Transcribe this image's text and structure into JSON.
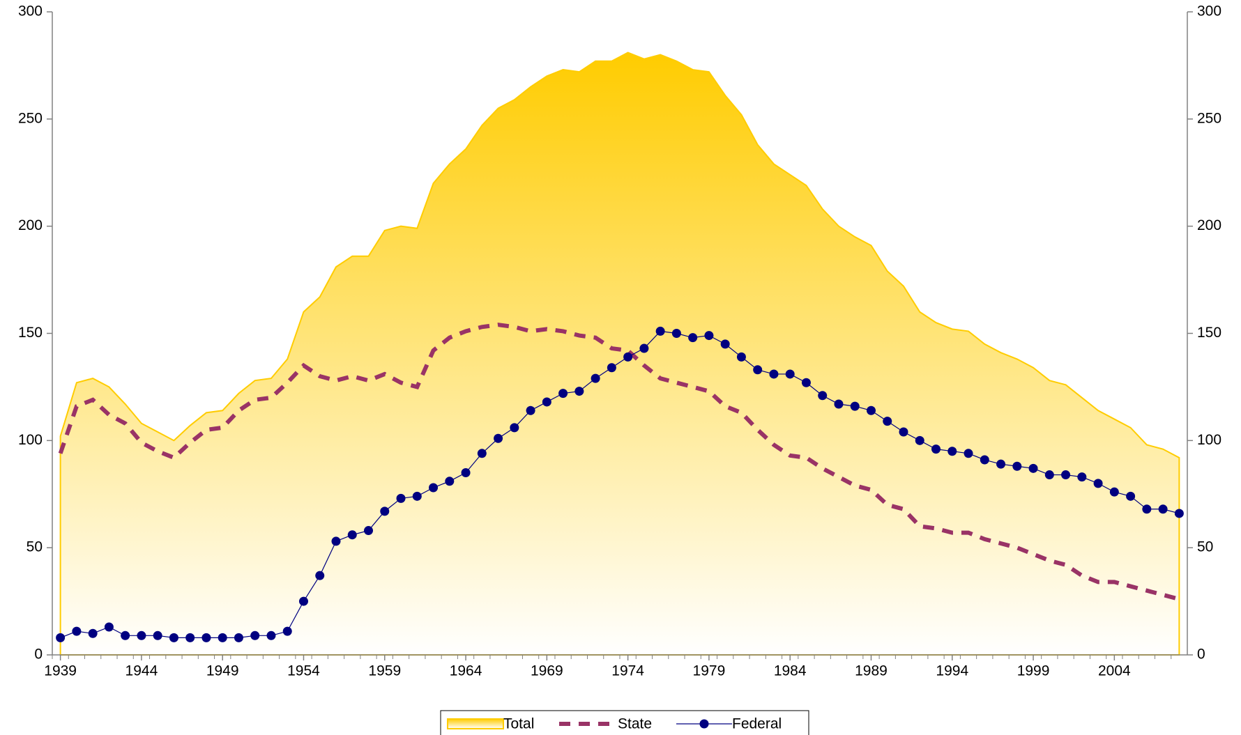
{
  "chart_data": {
    "type": "area-line",
    "x": [
      1939,
      1940,
      1941,
      1942,
      1943,
      1944,
      1945,
      1946,
      1947,
      1948,
      1949,
      1950,
      1951,
      1952,
      1953,
      1954,
      1955,
      1956,
      1957,
      1958,
      1959,
      1960,
      1961,
      1962,
      1963,
      1964,
      1965,
      1966,
      1967,
      1968,
      1969,
      1970,
      1971,
      1972,
      1973,
      1974,
      1975,
      1976,
      1977,
      1978,
      1979,
      1980,
      1981,
      1982,
      1983,
      1984,
      1985,
      1986,
      1987,
      1988,
      1989,
      1990,
      1991,
      1992,
      1993,
      1994,
      1995,
      1996,
      1997,
      1998,
      1999,
      2000,
      2001,
      2002,
      2003,
      2004,
      2005,
      2006,
      2007,
      2008
    ],
    "series": [
      {
        "name": "Total",
        "color": "#ffcc00",
        "style": "area",
        "values": [
          102,
          127,
          129,
          125,
          117,
          108,
          104,
          100,
          107,
          113,
          114,
          122,
          128,
          129,
          138,
          160,
          167,
          181,
          186,
          186,
          198,
          200,
          199,
          220,
          229,
          236,
          247,
          255,
          259,
          265,
          270,
          273,
          272,
          277,
          277,
          281,
          278,
          280,
          277,
          273,
          272,
          261,
          252,
          238,
          229,
          224,
          219,
          208,
          200,
          195,
          191,
          179,
          172,
          160,
          155,
          152,
          151,
          145,
          141,
          138,
          134,
          128,
          126,
          120,
          114,
          110,
          106,
          98,
          96,
          92
        ]
      },
      {
        "name": "State",
        "color": "#993366",
        "style": "dashed",
        "values": [
          94,
          116,
          119,
          112,
          108,
          99,
          95,
          92,
          99,
          105,
          106,
          114,
          119,
          120,
          127,
          135,
          130,
          128,
          130,
          128,
          131,
          127,
          125,
          142,
          148,
          151,
          153,
          154,
          153,
          151,
          152,
          151,
          149,
          148,
          143,
          142,
          135,
          129,
          127,
          125,
          123,
          116,
          113,
          105,
          98,
          93,
          92,
          87,
          83,
          79,
          77,
          70,
          68,
          60,
          59,
          57,
          57,
          54,
          52,
          50,
          47,
          44,
          42,
          37,
          34,
          34,
          32,
          30,
          28,
          26
        ]
      },
      {
        "name": "Federal",
        "color": "#000080",
        "style": "marker-line",
        "values": [
          8,
          11,
          10,
          13,
          9,
          9,
          9,
          8,
          8,
          8,
          8,
          8,
          9,
          9,
          11,
          25,
          37,
          53,
          56,
          58,
          67,
          73,
          74,
          78,
          81,
          85,
          94,
          101,
          106,
          114,
          118,
          122,
          123,
          129,
          134,
          139,
          143,
          151,
          150,
          148,
          149,
          145,
          139,
          133,
          131,
          131,
          127,
          121,
          117,
          116,
          114,
          109,
          104,
          100,
          96,
          95,
          94,
          91,
          89,
          88,
          87,
          84,
          84,
          83,
          80,
          76,
          74,
          68,
          68,
          66
        ]
      }
    ],
    "xlim": [
      1938.5,
      2008.5
    ],
    "xticks": [
      1939,
      1944,
      1949,
      1954,
      1959,
      1964,
      1969,
      1974,
      1979,
      1984,
      1989,
      1994,
      1999,
      2004
    ],
    "ylim": [
      0,
      300
    ],
    "yticks": [
      0,
      50,
      100,
      150,
      200,
      250,
      300
    ],
    "y2lim": [
      0,
      300
    ],
    "y2ticks": [
      0,
      50,
      100,
      150,
      200,
      250,
      300
    ],
    "grid": false,
    "legend": "bottom"
  }
}
